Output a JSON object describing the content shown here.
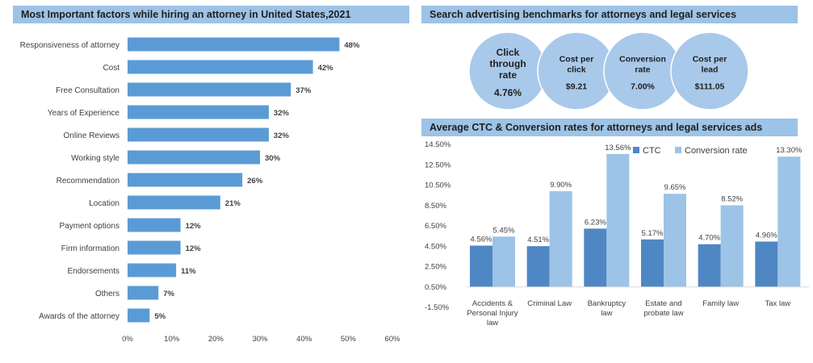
{
  "panels": {
    "left_title": "Most Important factors while hiring an attorney in United States,2021",
    "top_right_title": "Search advertising benchmarks for attorneys and legal services",
    "bottom_right_title": "Average CTC & Conversion rates for attorneys and legal services ads"
  },
  "colors": {
    "title_bg": "#9dc3e6",
    "bar": "#5b9bd5",
    "ctc": "#4f87c4",
    "conversion": "#9dc3e6",
    "circle": "#a9c9ea"
  },
  "benchmarks": [
    {
      "label_lines": [
        "Click",
        "through",
        "rate"
      ],
      "value": "4.76%"
    },
    {
      "label_lines": [
        "Cost per",
        "click"
      ],
      "value": "$9.21"
    },
    {
      "label_lines": [
        "Conversion",
        "rate"
      ],
      "value": "7.00%"
    },
    {
      "label_lines": [
        "Cost per",
        "lead"
      ],
      "value": "$111.05"
    }
  ],
  "chart_data": [
    {
      "type": "bar",
      "orientation": "horizontal",
      "title": "Most Important factors while hiring an attorney in United States,2021",
      "categories": [
        "Responsiveness of attorney",
        "Cost",
        "Free Consultation",
        "Years of Experience",
        "Online Reviews",
        "Working style",
        "Recommendation",
        "Location",
        "Payment options",
        "Firm information",
        "Endorsements",
        "Others",
        "Awards of the attorney"
      ],
      "values": [
        48,
        42,
        37,
        32,
        32,
        30,
        26,
        21,
        12,
        12,
        11,
        7,
        5
      ],
      "value_labels": [
        "48%",
        "42%",
        "37%",
        "32%",
        "32%",
        "30%",
        "26%",
        "21%",
        "12%",
        "12%",
        "11%",
        "7%",
        "5%"
      ],
      "xlim": [
        0,
        60
      ],
      "xticks": [
        0,
        10,
        20,
        30,
        40,
        50,
        60
      ],
      "xtick_labels": [
        "0%",
        "10%",
        "20%",
        "30%",
        "40%",
        "50%",
        "60%"
      ]
    },
    {
      "type": "bar",
      "title": "Average CTC & Conversion rates for attorneys and legal services ads",
      "categories": [
        [
          "Accidents &",
          "Personal Injury",
          "law"
        ],
        [
          "Criminal Law"
        ],
        [
          "Bankruptcy",
          "law"
        ],
        [
          "Estate and",
          "probate law"
        ],
        [
          "Family law"
        ],
        [
          "Tax law"
        ]
      ],
      "series": [
        {
          "name": "CTC",
          "values": [
            4.56,
            4.51,
            6.23,
            5.17,
            4.7,
            4.96
          ],
          "labels": [
            "4.56%",
            "4.51%",
            "6.23%",
            "5.17%",
            "4.70%",
            "4.96%"
          ]
        },
        {
          "name": "Conversion rate",
          "values": [
            5.45,
            9.9,
            13.56,
            9.65,
            8.52,
            13.3
          ],
          "labels": [
            "5.45%",
            "9.90%",
            "13.56%",
            "9.65%",
            "8.52%",
            "13.30%"
          ]
        }
      ],
      "ylim": [
        -1.5,
        14.5
      ],
      "yticks": [
        -1.5,
        0.5,
        2.5,
        4.5,
        6.5,
        8.5,
        10.5,
        12.5,
        14.5
      ],
      "ytick_labels": [
        "-1.50%",
        "0.50%",
        "2.50%",
        "4.50%",
        "6.50%",
        "8.50%",
        "10.50%",
        "12.50%",
        "14.50%"
      ],
      "legend_position": "top-right"
    }
  ]
}
